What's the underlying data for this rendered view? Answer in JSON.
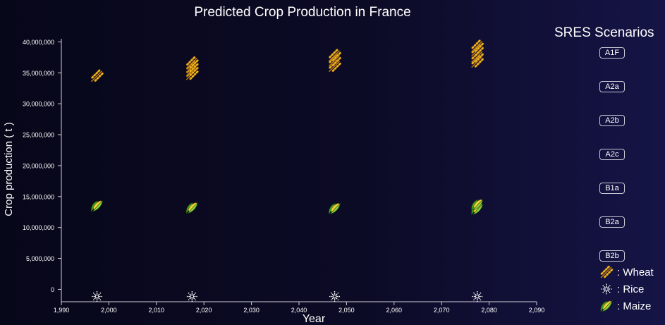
{
  "chart_data": {
    "type": "scatter",
    "title": "Predicted Crop Production in France",
    "xlabel": "Year",
    "ylabel": "Crop production ( t )",
    "xlim": [
      1990,
      2090
    ],
    "ylim": [
      -2000000,
      40500000
    ],
    "x_ticks": [
      1990,
      2000,
      2010,
      2020,
      2030,
      2040,
      2050,
      2060,
      2070,
      2080,
      2090
    ],
    "y_ticks": [
      0,
      5000000,
      10000000,
      15000000,
      20000000,
      25000000,
      30000000,
      35000000,
      40000000
    ],
    "grid": false,
    "legend_title": "SRES Scenarios",
    "scenarios": [
      "A1F",
      "A2a",
      "A2b",
      "A2c",
      "B1a",
      "B2a",
      "B2b"
    ],
    "crops": [
      {
        "name": "Wheat",
        "label": ": Wheat",
        "icon": "wheat-icon",
        "color": "#f2b81f"
      },
      {
        "name": "Rice",
        "label": ": Rice",
        "icon": "rice-icon",
        "color": "#ffffff"
      },
      {
        "name": "Maize",
        "label": ": Maize",
        "icon": "maize-icon",
        "color": "#8cd13a"
      }
    ],
    "series": [
      {
        "crop": "Wheat",
        "points": [
          {
            "x": 1997.5,
            "y": 34500000
          },
          {
            "x": 2017.5,
            "y": 34800000
          },
          {
            "x": 2017.5,
            "y": 35400000
          },
          {
            "x": 2017.5,
            "y": 36000000
          },
          {
            "x": 2017.5,
            "y": 36600000
          },
          {
            "x": 2047.5,
            "y": 36100000
          },
          {
            "x": 2047.5,
            "y": 37000000
          },
          {
            "x": 2047.5,
            "y": 37800000
          },
          {
            "x": 2077.5,
            "y": 36800000
          },
          {
            "x": 2077.5,
            "y": 37600000
          },
          {
            "x": 2077.5,
            "y": 38600000
          },
          {
            "x": 2077.5,
            "y": 39300000
          }
        ]
      },
      {
        "crop": "Rice",
        "points": [
          {
            "x": 1997.5,
            "y": -1150000
          },
          {
            "x": 2017.5,
            "y": -1150000
          },
          {
            "x": 2047.5,
            "y": -1150000
          },
          {
            "x": 2077.5,
            "y": -1150000
          }
        ]
      },
      {
        "crop": "Maize",
        "points": [
          {
            "x": 1997.5,
            "y": 13500000
          },
          {
            "x": 2017.5,
            "y": 13200000
          },
          {
            "x": 2047.5,
            "y": 13100000
          },
          {
            "x": 2077.5,
            "y": 13000000
          },
          {
            "x": 2077.5,
            "y": 13700000
          }
        ]
      }
    ]
  }
}
